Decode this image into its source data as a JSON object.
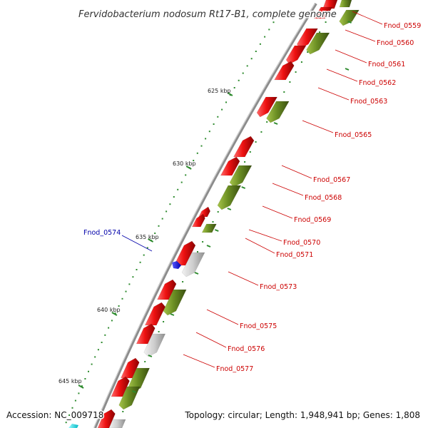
{
  "title": "Fervidobacterium nodosum Rt17-B1, complete genome",
  "accession": "Accession: NC_009718",
  "summary": "Topology: circular; Length: 1,948,941 bp; Genes: 1,808",
  "colors": {
    "backbone": "#8c8c8c",
    "red_gene": "#ee1111",
    "green_gene": "#6b8e23",
    "grey_gene": "#c8c8c8",
    "highlight_gene": "#0000ee",
    "cyan_gene": "#00e5ee",
    "label_red": "#cc0000",
    "label_blue": "#0000aa",
    "tick_green": "#2e8b2e"
  },
  "scale": {
    "unit": "kbp",
    "major_ticks": [
      {
        "label": "625 kbp"
      },
      {
        "label": "630 kbp"
      },
      {
        "label": "635 kbp"
      },
      {
        "label": "640 kbp"
      },
      {
        "label": "645 kbp"
      }
    ]
  },
  "gene_labels": [
    {
      "text": "Fnod_0559",
      "color": "red"
    },
    {
      "text": "Fnod_0560",
      "color": "red"
    },
    {
      "text": "Fnod_0561",
      "color": "red"
    },
    {
      "text": "Fnod_0562",
      "color": "red"
    },
    {
      "text": "Fnod_0563",
      "color": "red"
    },
    {
      "text": "Fnod_0565",
      "color": "red"
    },
    {
      "text": "Fnod_0567",
      "color": "red"
    },
    {
      "text": "Fnod_0568",
      "color": "red"
    },
    {
      "text": "Fnod_0569",
      "color": "red"
    },
    {
      "text": "Fnod_0570",
      "color": "red"
    },
    {
      "text": "Fnod_0571",
      "color": "red"
    },
    {
      "text": "Fnod_0573",
      "color": "red"
    },
    {
      "text": "Fnod_0575",
      "color": "red"
    },
    {
      "text": "Fnod_0576",
      "color": "red"
    },
    {
      "text": "Fnod_0577",
      "color": "red"
    },
    {
      "text": "Fnod_0574",
      "color": "blue"
    }
  ]
}
